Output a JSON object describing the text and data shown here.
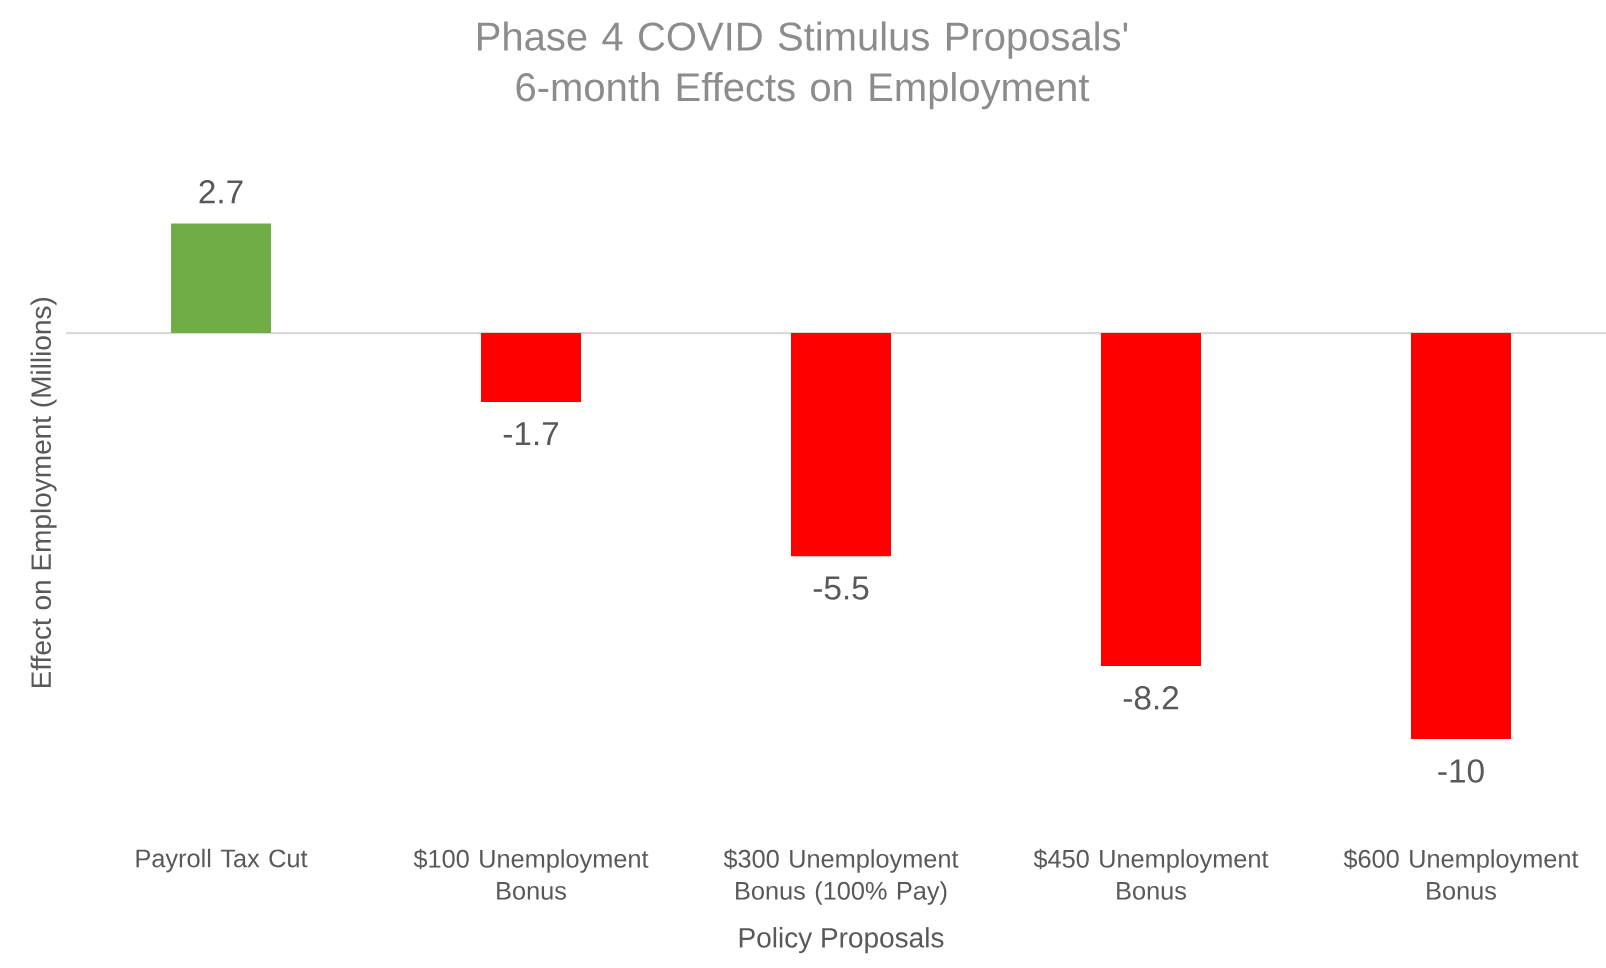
{
  "chart_data": {
    "type": "bar",
    "title": "Phase 4 COVID Stimulus Proposals' 6-month Effects on Employment",
    "xlabel": "Policy Proposals",
    "ylabel": "Effect on Employment (Millions)",
    "categories": [
      "Payroll Tax Cut",
      "$100 Unemployment Bonus",
      "$300 Unemployment Bonus (100% Pay)",
      "$450 Unemployment Bonus",
      "$600 Unemployment Bonus"
    ],
    "values": [
      2.7,
      -1.7,
      -5.5,
      -8.2,
      -10
    ],
    "colors": [
      "#70ad47",
      "#ff0000",
      "#ff0000",
      "#ff0000",
      "#ff0000"
    ],
    "data_labels": true
  }
}
